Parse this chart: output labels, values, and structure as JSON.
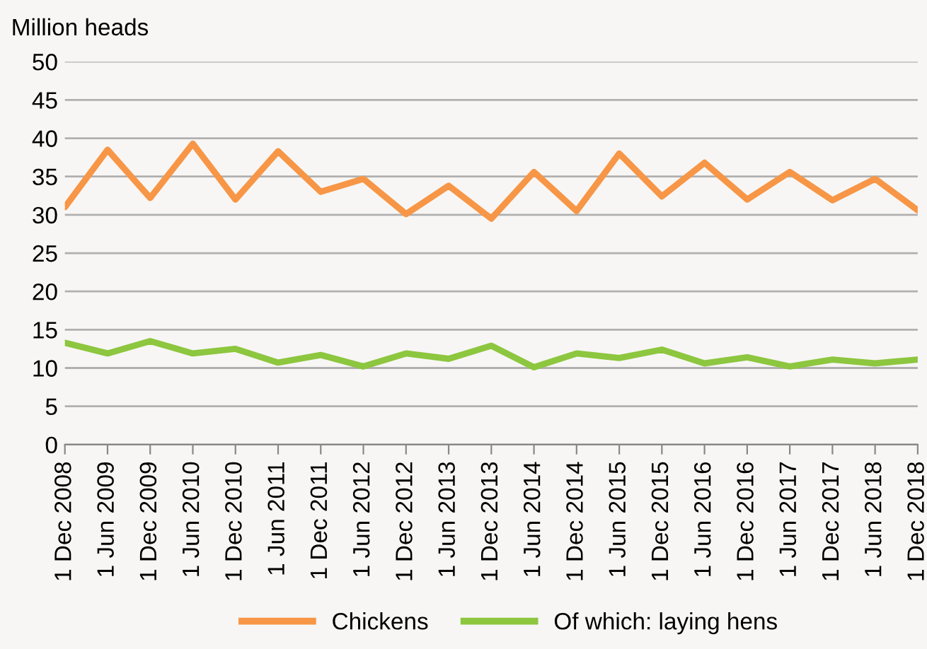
{
  "chart_data": {
    "type": "line",
    "ylabel": "Million heads",
    "categories": [
      "1 Dec 2008",
      "1 Jun 2009",
      "1 Dec 2009",
      "1 Jun 2010",
      "1 Dec 2010",
      "1 Jun 2011",
      "1 Dec 2011",
      "1 Jun 2012",
      "1 Dec 2012",
      "1 Jun 2013",
      "1 Dec 2013",
      "1 Jun 2014",
      "1 Dec 2014",
      "1 Jun 2015",
      "1 Dec 2015",
      "1 Jun 2016",
      "1 Dec 2016",
      "1 Jun 2017",
      "1 Dec 2017",
      "1 Jun 2018",
      "1 Dec 2018"
    ],
    "series": [
      {
        "name": "Chickens",
        "color": "#f79646",
        "values": [
          31,
          38.5,
          32.2,
          39.3,
          32,
          38.3,
          33,
          34.7,
          30.1,
          33.8,
          29.5,
          35.6,
          30.5,
          38,
          32.4,
          36.8,
          32,
          35.6,
          31.9,
          34.7,
          30.6
        ]
      },
      {
        "name": "Of which: laying hens",
        "color": "#8dc63f",
        "values": [
          13.3,
          11.9,
          13.5,
          11.9,
          12.5,
          10.7,
          11.7,
          10.2,
          11.9,
          11.2,
          12.9,
          10.1,
          11.9,
          11.3,
          12.4,
          10.6,
          11.4,
          10.2,
          11.1,
          10.6,
          11.1
        ]
      }
    ],
    "ylim": [
      0,
      50
    ],
    "yticks": [
      0,
      5,
      10,
      15,
      20,
      25,
      30,
      35,
      40,
      45,
      50
    ],
    "grid": "y",
    "legend": "bottom",
    "marker": "none",
    "line_style": "solid"
  }
}
